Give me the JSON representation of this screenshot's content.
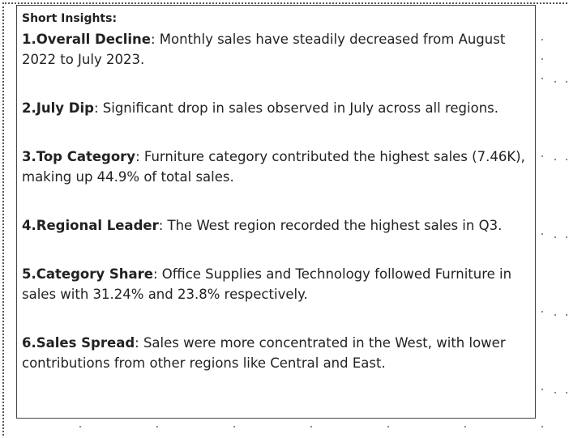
{
  "insights": {
    "title": "Short Insights:",
    "items": [
      {
        "heading": "1.Overall Decline",
        "text": ": Monthly sales have steadily decreased from August 2022 to July 2023."
      },
      {
        "heading": "2.July Dip",
        "text": ": Significant drop in sales observed in July across all regions."
      },
      {
        "heading": "3.Top Category",
        "text": ": Furniture category contributed the highest sales (7.46K), making up 44.9% of total sales."
      },
      {
        "heading": "4.Regional Leader",
        "text": ": The West region recorded the highest sales in Q3."
      },
      {
        "heading": "5.Category Share",
        "text": ": Office Supplies and Technology followed Furniture in sales with 31.24% and 23.8% respectively."
      },
      {
        "heading": "6.Sales Spread",
        "text": ": Sales were more concentrated in the West, with lower contributions from other regions like Central and East."
      }
    ]
  }
}
